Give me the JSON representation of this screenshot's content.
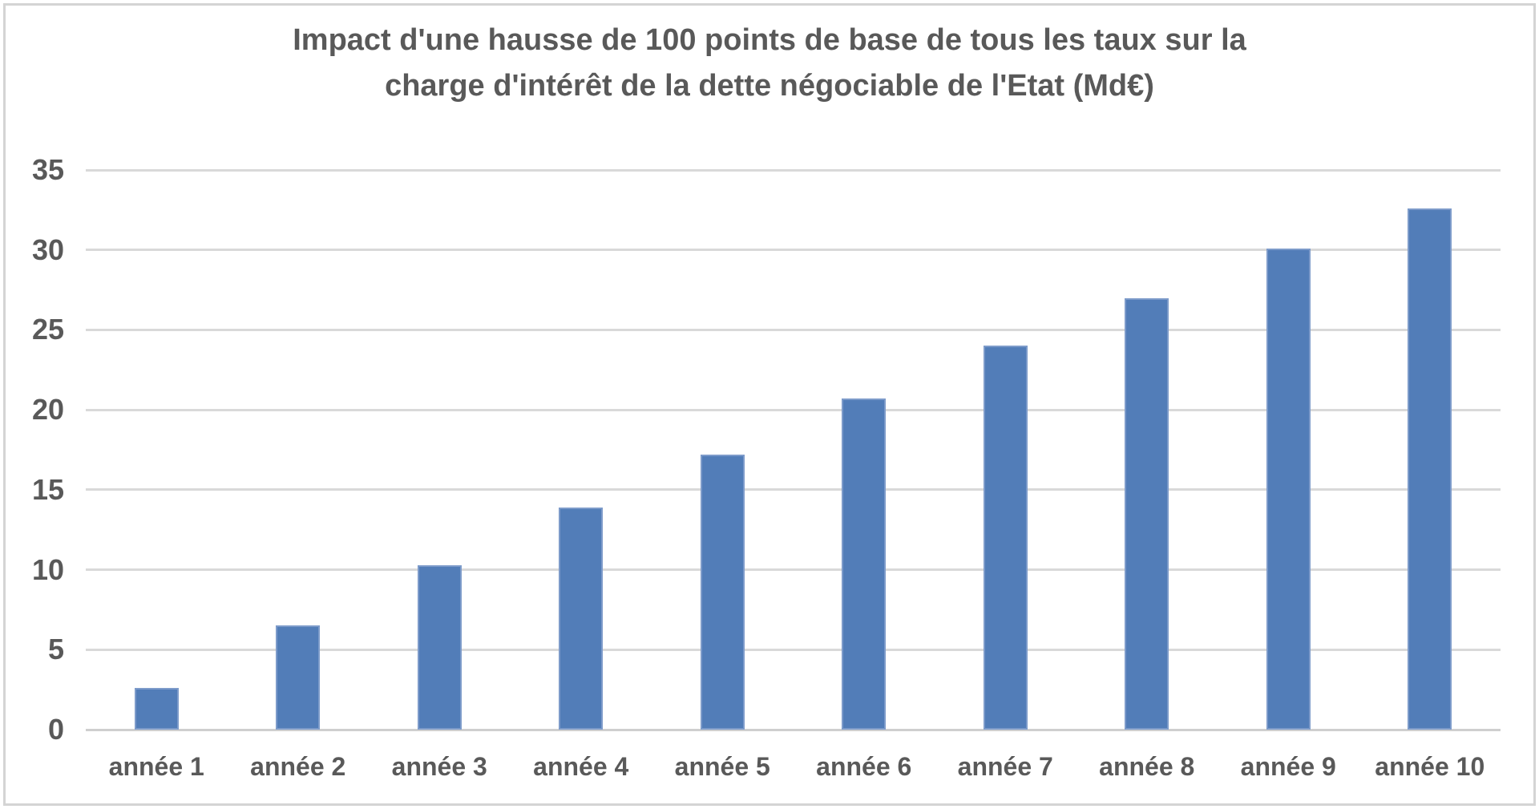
{
  "frame": {
    "border_color": "#d4d4d4"
  },
  "chart_data": {
    "type": "bar",
    "title": "Impact d'une hausse de 100 points de base de tous les taux sur la charge d'intérêt de la dette négociable de l'Etat (Md€)",
    "title_lines": [
      "Impact d'une hausse de 100 points de base de tous les taux sur la",
      "charge d'intérêt de la dette négociable de l'Etat (Md€)"
    ],
    "unit": "Md€",
    "categories": [
      "année 1",
      "année 2",
      "année 3",
      "année 4",
      "année 5",
      "année 6",
      "année 7",
      "année 8",
      "année 9",
      "année 10"
    ],
    "values": [
      2.6,
      6.5,
      10.3,
      13.9,
      17.2,
      20.7,
      24.0,
      27.0,
      30.1,
      32.6
    ],
    "xlabel": "",
    "ylabel": "",
    "ylim": [
      0,
      35
    ],
    "yticks": [
      0,
      5,
      10,
      15,
      20,
      25,
      30,
      35
    ],
    "grid": true,
    "legend": false,
    "colors": {
      "bar_fill": "#527DB8",
      "bar_border": "#7d9bca",
      "gridline": "#d9d9d9",
      "axis_line": "#cfcfcf",
      "text": "#595959"
    }
  }
}
